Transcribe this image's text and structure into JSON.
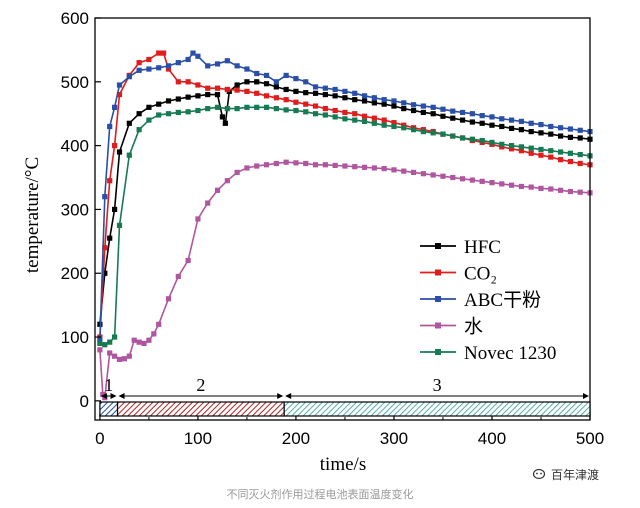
{
  "caption": "不同灭火剂作用过程电池表面温度变化",
  "watermark": {
    "text": "百年津渡",
    "icon": "wechat-icon"
  },
  "chart_data": {
    "type": "line",
    "title": "",
    "xlabel": "time/s",
    "ylabel": "temperature/°C",
    "xlim": [
      -5,
      500
    ],
    "ylim": [
      -30,
      600
    ],
    "xticks": [
      0,
      100,
      200,
      300,
      400,
      500
    ],
    "yticks": [
      0,
      100,
      200,
      300,
      400,
      500,
      600
    ],
    "legend_position": "center-right",
    "stages": [
      {
        "label": "1",
        "start": 0,
        "end": 18,
        "color": "#1f4fa0"
      },
      {
        "label": "2",
        "start": 18,
        "end": 188,
        "color": "#b22222"
      },
      {
        "label": "3",
        "start": 188,
        "end": 500,
        "color": "#2a9a9a"
      }
    ],
    "series": [
      {
        "name": "HFC",
        "color": "#000000",
        "points": [
          [
            0,
            120
          ],
          [
            5,
            200
          ],
          [
            10,
            255
          ],
          [
            15,
            300
          ],
          [
            20,
            390
          ],
          [
            30,
            435
          ],
          [
            40,
            450
          ],
          [
            50,
            460
          ],
          [
            60,
            465
          ],
          [
            70,
            470
          ],
          [
            80,
            473
          ],
          [
            90,
            476
          ],
          [
            100,
            478
          ],
          [
            110,
            480
          ],
          [
            120,
            480
          ],
          [
            125,
            445
          ],
          [
            128,
            435
          ],
          [
            132,
            485
          ],
          [
            140,
            495
          ],
          [
            150,
            500
          ],
          [
            160,
            500
          ],
          [
            170,
            497
          ],
          [
            180,
            492
          ],
          [
            190,
            488
          ],
          [
            200,
            485
          ],
          [
            210,
            483
          ],
          [
            220,
            482
          ],
          [
            230,
            480
          ],
          [
            240,
            478
          ],
          [
            250,
            475
          ],
          [
            260,
            472
          ],
          [
            270,
            470
          ],
          [
            280,
            467
          ],
          [
            290,
            465
          ],
          [
            300,
            462
          ],
          [
            310,
            458
          ],
          [
            320,
            455
          ],
          [
            330,
            452
          ],
          [
            340,
            450
          ],
          [
            350,
            446
          ],
          [
            360,
            443
          ],
          [
            370,
            440
          ],
          [
            380,
            437
          ],
          [
            390,
            435
          ],
          [
            400,
            432
          ],
          [
            410,
            430
          ],
          [
            420,
            427
          ],
          [
            430,
            425
          ],
          [
            440,
            422
          ],
          [
            450,
            420
          ],
          [
            460,
            418
          ],
          [
            470,
            415
          ],
          [
            480,
            413
          ],
          [
            490,
            412
          ],
          [
            500,
            410
          ]
        ]
      },
      {
        "name": "CO₂",
        "color": "#e01c1c",
        "points": [
          [
            0,
            100
          ],
          [
            5,
            240
          ],
          [
            10,
            345
          ],
          [
            15,
            400
          ],
          [
            20,
            480
          ],
          [
            30,
            510
          ],
          [
            40,
            530
          ],
          [
            50,
            535
          ],
          [
            60,
            545
          ],
          [
            65,
            545
          ],
          [
            70,
            520
          ],
          [
            80,
            500
          ],
          [
            90,
            500
          ],
          [
            100,
            495
          ],
          [
            110,
            490
          ],
          [
            120,
            490
          ],
          [
            130,
            488
          ],
          [
            140,
            487
          ],
          [
            150,
            485
          ],
          [
            160,
            482
          ],
          [
            170,
            478
          ],
          [
            180,
            475
          ],
          [
            190,
            472
          ],
          [
            200,
            468
          ],
          [
            210,
            465
          ],
          [
            220,
            462
          ],
          [
            230,
            458
          ],
          [
            240,
            455
          ],
          [
            250,
            452
          ],
          [
            260,
            450
          ],
          [
            270,
            446
          ],
          [
            280,
            443
          ],
          [
            290,
            440
          ],
          [
            300,
            436
          ],
          [
            310,
            432
          ],
          [
            320,
            428
          ],
          [
            330,
            425
          ],
          [
            340,
            422
          ],
          [
            350,
            418
          ],
          [
            360,
            415
          ],
          [
            370,
            412
          ],
          [
            380,
            408
          ],
          [
            390,
            405
          ],
          [
            400,
            402
          ],
          [
            410,
            398
          ],
          [
            420,
            395
          ],
          [
            430,
            392
          ],
          [
            440,
            388
          ],
          [
            450,
            385
          ],
          [
            460,
            382
          ],
          [
            470,
            378
          ],
          [
            480,
            375
          ],
          [
            490,
            372
          ],
          [
            500,
            370
          ]
        ]
      },
      {
        "name": "ABC干粉",
        "color": "#2a4fa8",
        "points": [
          [
            0,
            95
          ],
          [
            5,
            320
          ],
          [
            10,
            430
          ],
          [
            15,
            460
          ],
          [
            20,
            495
          ],
          [
            30,
            508
          ],
          [
            40,
            518
          ],
          [
            50,
            520
          ],
          [
            60,
            522
          ],
          [
            70,
            525
          ],
          [
            80,
            530
          ],
          [
            90,
            535
          ],
          [
            95,
            545
          ],
          [
            100,
            540
          ],
          [
            110,
            525
          ],
          [
            120,
            528
          ],
          [
            130,
            533
          ],
          [
            140,
            525
          ],
          [
            150,
            520
          ],
          [
            160,
            513
          ],
          [
            170,
            510
          ],
          [
            180,
            500
          ],
          [
            190,
            510
          ],
          [
            200,
            505
          ],
          [
            210,
            500
          ],
          [
            220,
            492
          ],
          [
            230,
            490
          ],
          [
            240,
            488
          ],
          [
            250,
            485
          ],
          [
            260,
            482
          ],
          [
            270,
            478
          ],
          [
            280,
            475
          ],
          [
            290,
            472
          ],
          [
            300,
            470
          ],
          [
            310,
            467
          ],
          [
            320,
            464
          ],
          [
            330,
            462
          ],
          [
            340,
            460
          ],
          [
            350,
            457
          ],
          [
            360,
            454
          ],
          [
            370,
            452
          ],
          [
            380,
            450
          ],
          [
            390,
            447
          ],
          [
            400,
            445
          ],
          [
            410,
            442
          ],
          [
            420,
            440
          ],
          [
            430,
            438
          ],
          [
            440,
            435
          ],
          [
            450,
            433
          ],
          [
            460,
            430
          ],
          [
            470,
            428
          ],
          [
            480,
            426
          ],
          [
            490,
            424
          ],
          [
            500,
            422
          ]
        ]
      },
      {
        "name": "水",
        "color": "#b0569f",
        "points": [
          [
            0,
            80
          ],
          [
            3,
            10
          ],
          [
            5,
            5
          ],
          [
            10,
            75
          ],
          [
            15,
            70
          ],
          [
            20,
            65
          ],
          [
            25,
            66
          ],
          [
            30,
            70
          ],
          [
            35,
            95
          ],
          [
            40,
            92
          ],
          [
            45,
            90
          ],
          [
            50,
            95
          ],
          [
            55,
            105
          ],
          [
            60,
            120
          ],
          [
            70,
            160
          ],
          [
            80,
            195
          ],
          [
            90,
            220
          ],
          [
            100,
            285
          ],
          [
            110,
            310
          ],
          [
            120,
            330
          ],
          [
            130,
            345
          ],
          [
            140,
            358
          ],
          [
            150,
            365
          ],
          [
            160,
            368
          ],
          [
            170,
            370
          ],
          [
            180,
            372
          ],
          [
            190,
            374
          ],
          [
            200,
            373
          ],
          [
            210,
            372
          ],
          [
            220,
            370
          ],
          [
            230,
            370
          ],
          [
            240,
            369
          ],
          [
            250,
            368
          ],
          [
            260,
            367
          ],
          [
            270,
            366
          ],
          [
            280,
            365
          ],
          [
            290,
            364
          ],
          [
            300,
            362
          ],
          [
            310,
            360
          ],
          [
            320,
            358
          ],
          [
            330,
            356
          ],
          [
            340,
            354
          ],
          [
            350,
            352
          ],
          [
            360,
            350
          ],
          [
            370,
            348
          ],
          [
            380,
            346
          ],
          [
            390,
            344
          ],
          [
            400,
            342
          ],
          [
            410,
            340
          ],
          [
            420,
            338
          ],
          [
            430,
            336
          ],
          [
            440,
            335
          ],
          [
            450,
            333
          ],
          [
            460,
            332
          ],
          [
            470,
            330
          ],
          [
            480,
            328
          ],
          [
            490,
            327
          ],
          [
            500,
            326
          ]
        ]
      },
      {
        "name": "Novec 1230",
        "color": "#167a52",
        "points": [
          [
            0,
            90
          ],
          [
            5,
            88
          ],
          [
            10,
            92
          ],
          [
            15,
            100
          ],
          [
            20,
            275
          ],
          [
            30,
            385
          ],
          [
            40,
            425
          ],
          [
            50,
            440
          ],
          [
            60,
            448
          ],
          [
            70,
            450
          ],
          [
            80,
            452
          ],
          [
            90,
            453
          ],
          [
            100,
            455
          ],
          [
            110,
            458
          ],
          [
            120,
            460
          ],
          [
            130,
            458
          ],
          [
            140,
            458
          ],
          [
            150,
            460
          ],
          [
            160,
            460
          ],
          [
            170,
            460
          ],
          [
            180,
            458
          ],
          [
            190,
            456
          ],
          [
            200,
            455
          ],
          [
            210,
            453
          ],
          [
            220,
            450
          ],
          [
            230,
            448
          ],
          [
            240,
            445
          ],
          [
            250,
            442
          ],
          [
            260,
            440
          ],
          [
            270,
            438
          ],
          [
            280,
            435
          ],
          [
            290,
            432
          ],
          [
            300,
            430
          ],
          [
            310,
            428
          ],
          [
            320,
            425
          ],
          [
            330,
            422
          ],
          [
            340,
            420
          ],
          [
            350,
            418
          ],
          [
            360,
            415
          ],
          [
            370,
            412
          ],
          [
            380,
            410
          ],
          [
            390,
            408
          ],
          [
            400,
            405
          ],
          [
            410,
            402
          ],
          [
            420,
            400
          ],
          [
            430,
            398
          ],
          [
            440,
            396
          ],
          [
            450,
            394
          ],
          [
            460,
            392
          ],
          [
            470,
            390
          ],
          [
            480,
            388
          ],
          [
            490,
            386
          ],
          [
            500,
            384
          ]
        ]
      }
    ]
  }
}
